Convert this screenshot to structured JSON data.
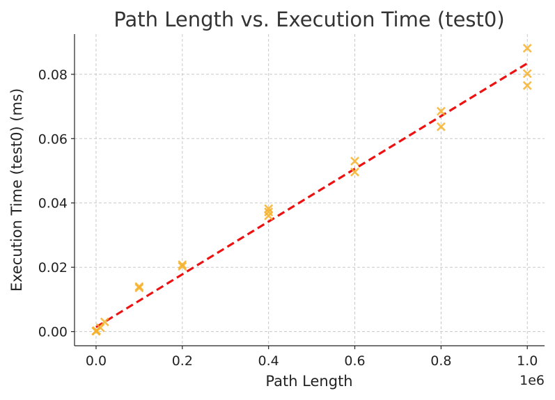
{
  "chart_data": {
    "type": "scatter",
    "title": "Path Length vs. Execution Time (test0)",
    "xlabel": "Path Length",
    "ylabel": "Execution Time (test0) (ms)",
    "x_offset_label": "1e6",
    "xlim": [
      -50000,
      1040000
    ],
    "ylim": [
      -0.0044,
      0.0925
    ],
    "x_ticks": [
      0,
      200000,
      400000,
      600000,
      800000,
      1000000
    ],
    "x_tick_labels": [
      "0.0",
      "0.2",
      "0.4",
      "0.6",
      "0.8",
      "1.0"
    ],
    "y_ticks": [
      0,
      0.02,
      0.04,
      0.06,
      0.08
    ],
    "y_tick_labels": [
      "0.00",
      "0.02",
      "0.04",
      "0.06",
      "0.08"
    ],
    "grid": true,
    "series": [
      {
        "type": "scatter",
        "marker": "x",
        "color": "#F6B12A",
        "points": [
          {
            "x": 0,
            "y": 0.0001
          },
          {
            "x": 0,
            "y": 0.0002
          },
          {
            "x": 100,
            "y": 0.0002
          },
          {
            "x": 1000,
            "y": 0.0003
          },
          {
            "x": 10000,
            "y": 0.0012
          },
          {
            "x": 20000,
            "y": 0.003
          },
          {
            "x": 100000,
            "y": 0.0136
          },
          {
            "x": 100000,
            "y": 0.014
          },
          {
            "x": 200000,
            "y": 0.0203
          },
          {
            "x": 200000,
            "y": 0.0208
          },
          {
            "x": 400000,
            "y": 0.036
          },
          {
            "x": 400000,
            "y": 0.0372
          },
          {
            "x": 400000,
            "y": 0.0382
          },
          {
            "x": 600000,
            "y": 0.0496
          },
          {
            "x": 600000,
            "y": 0.053
          },
          {
            "x": 800000,
            "y": 0.0637
          },
          {
            "x": 800000,
            "y": 0.0685
          },
          {
            "x": 1000000,
            "y": 0.0765
          },
          {
            "x": 1000000,
            "y": 0.0802
          },
          {
            "x": 1000000,
            "y": 0.0881
          }
        ]
      },
      {
        "type": "line",
        "style": "dashed",
        "color": "#EE1111",
        "x": [
          0,
          1000000
        ],
        "y": [
          0.0014,
          0.0834
        ]
      }
    ]
  }
}
